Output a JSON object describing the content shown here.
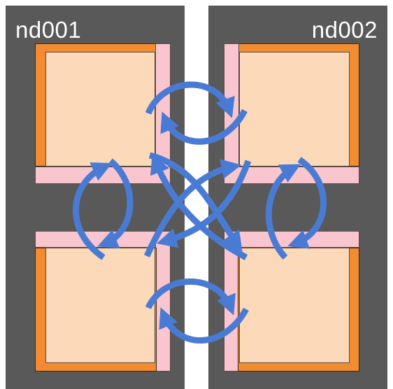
{
  "nodes": [
    {
      "id": "nd001",
      "label": "nd001"
    },
    {
      "id": "nd002",
      "label": "nd002"
    }
  ],
  "colors": {
    "node_bg": "#595959",
    "orange": "#f28c30",
    "peach": "#fcd9b8",
    "halo": "#f9c6cf",
    "arrow": "#4a7bd4"
  }
}
